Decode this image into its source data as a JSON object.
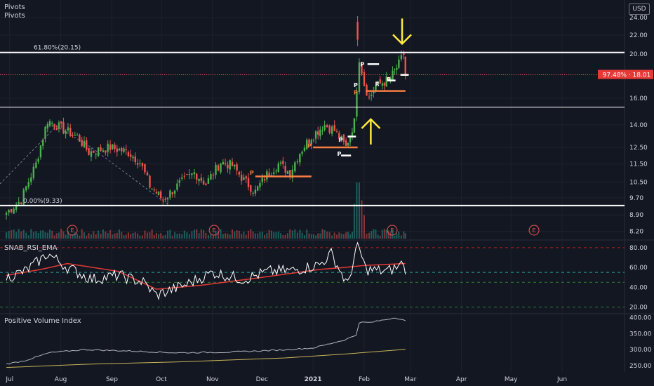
{
  "legend": {
    "line1": "Pivots",
    "line2": "Pivots",
    "currency": "USD"
  },
  "price_panel": {
    "fib_618_label": "61.80%(20.15)",
    "fib_000_label": "0.00%(9.33)",
    "price_badge": "97.48% · 18.01",
    "pivot_marker": "P",
    "pivot_marker_alt": "R",
    "earnings_marker": "E"
  },
  "rsi_panel": {
    "title": "SNAB_RSI_EMA"
  },
  "pvi_panel": {
    "title": "Positive Volume Index"
  },
  "colors": {
    "background": "#131722",
    "up": "#26a69a",
    "up_bright": "#4caf50",
    "down": "#ef5350",
    "fib": "#ffffff",
    "pivot_orange": "#f57c42",
    "arrow": "#ffeb3b",
    "rsi": "#ffffff",
    "rsi_ema": "#e53935",
    "pvi": "#b2b5be",
    "pvi_ema": "#c9b458",
    "badge": "#e53935"
  },
  "chart_data": [
    {
      "type": "candlestick",
      "title": "",
      "x_ticks": [
        "Jul",
        "Aug",
        "Sep",
        "Oct",
        "Nov",
        "Dec",
        "2021",
        "Feb",
        "Mar",
        "Apr",
        "May",
        "Jun"
      ],
      "y_ticks": [
        8.2,
        8.9,
        9.7,
        10.5,
        11.5,
        12.5,
        14.0,
        16.0,
        18.0,
        20.0,
        22.0,
        24.0
      ],
      "y_scale": "log",
      "ylim": [
        7.9,
        25.5
      ],
      "close_anchors": [
        {
          "date": "2020-06-29",
          "value": 9.0
        },
        {
          "date": "2020-07-08",
          "value": 9.6
        },
        {
          "date": "2020-07-17",
          "value": 11.5
        },
        {
          "date": "2020-07-24",
          "value": 14.3
        },
        {
          "date": "2020-08-04",
          "value": 13.6
        },
        {
          "date": "2020-08-11",
          "value": 13.2
        },
        {
          "date": "2020-08-18",
          "value": 12.2
        },
        {
          "date": "2020-08-31",
          "value": 12.5
        },
        {
          "date": "2020-09-11",
          "value": 12.2
        },
        {
          "date": "2020-09-18",
          "value": 11.6
        },
        {
          "date": "2020-09-24",
          "value": 10.3
        },
        {
          "date": "2020-10-02",
          "value": 9.6
        },
        {
          "date": "2020-10-12",
          "value": 10.4
        },
        {
          "date": "2020-10-21",
          "value": 11.0
        },
        {
          "date": "2020-10-28",
          "value": 10.4
        },
        {
          "date": "2020-11-06",
          "value": 11.6
        },
        {
          "date": "2020-11-13",
          "value": 11.4
        },
        {
          "date": "2020-11-20",
          "value": 10.6
        },
        {
          "date": "2020-11-27",
          "value": 10.0
        },
        {
          "date": "2020-12-04",
          "value": 10.9
        },
        {
          "date": "2020-12-11",
          "value": 11.5
        },
        {
          "date": "2020-12-18",
          "value": 11.0
        },
        {
          "date": "2020-12-24",
          "value": 12.2
        },
        {
          "date": "2020-12-31",
          "value": 13.2
        },
        {
          "date": "2021-01-08",
          "value": 14.0
        },
        {
          "date": "2021-01-14",
          "value": 13.6
        },
        {
          "date": "2021-01-21",
          "value": 12.5
        },
        {
          "date": "2021-01-26",
          "value": 14.2
        },
        {
          "date": "2021-01-29",
          "value": 19.6
        },
        {
          "date": "2021-02-01",
          "value": 17.2
        },
        {
          "date": "2021-02-04",
          "value": 16.0
        },
        {
          "date": "2021-02-08",
          "value": 17.0
        },
        {
          "date": "2021-02-12",
          "value": 17.3
        },
        {
          "date": "2021-02-17",
          "value": 17.7
        },
        {
          "date": "2021-02-22",
          "value": 19.0
        },
        {
          "date": "2021-02-25",
          "value": 20.0
        },
        {
          "date": "2021-02-26",
          "value": 18.01
        }
      ],
      "spike_candle": {
        "date": "2021-01-28",
        "open": 23.5,
        "high": 24.2,
        "low": 20.8,
        "close": 21.5
      },
      "fib_levels": [
        {
          "label": "61.80%(20.15)",
          "value": 20.15
        },
        {
          "label": "0.00%(9.33)",
          "value": 9.33
        }
      ],
      "support_line": 15.3,
      "current_price": 18.01,
      "pivot_lines": [
        {
          "type": "orange",
          "value": 10.8,
          "from": "2020-11-27",
          "to": "2020-12-31"
        },
        {
          "type": "orange",
          "value": 12.5,
          "from": "2021-01-01",
          "to": "2021-01-28"
        },
        {
          "type": "orange",
          "value": 16.6,
          "from": "2021-02-02",
          "to": "2021-02-26"
        },
        {
          "type": "white",
          "value": 13.2,
          "from": "2021-01-22",
          "to": "2021-01-27"
        },
        {
          "type": "white",
          "value": 12.0,
          "from": "2021-01-18",
          "to": "2021-01-24"
        },
        {
          "type": "white",
          "value": 19.0,
          "from": "2021-02-03",
          "to": "2021-02-10"
        },
        {
          "type": "white",
          "value": 18.0,
          "from": "2021-02-23",
          "to": "2021-02-28"
        },
        {
          "type": "white",
          "value": 17.5,
          "from": "2021-02-15",
          "to": "2021-02-20"
        }
      ],
      "earnings_dates": [
        "2020-08-08",
        "2020-11-02",
        "2021-02-18",
        "2021-05-15"
      ],
      "arrows": [
        {
          "direction": "down",
          "date": "2021-02-24",
          "value": 21.5
        },
        {
          "direction": "up",
          "date": "2021-02-05",
          "value": 14.1
        }
      ]
    },
    {
      "type": "line",
      "title": "SNAB_RSI_EMA",
      "y_ticks": [
        20.0,
        40.0,
        60.0,
        80.0
      ],
      "ylim": [
        14,
        87
      ],
      "hlines": [
        80,
        55,
        45,
        20
      ],
      "series": [
        {
          "type": "rsi",
          "x": [
            "2020-06-29",
            "2020-07-10",
            "2020-07-20",
            "2020-07-24",
            "2020-08-05",
            "2020-08-20",
            "2020-09-05",
            "2020-09-20",
            "2020-09-28",
            "2020-10-15",
            "2020-11-01",
            "2020-11-20",
            "2020-12-05",
            "2020-12-20",
            "2021-01-05",
            "2021-01-12",
            "2021-01-22",
            "2021-01-28",
            "2021-02-02",
            "2021-02-15",
            "2021-02-22",
            "2021-02-25",
            "2021-02-26"
          ],
          "y": [
            50,
            56,
            68,
            74,
            60,
            48,
            52,
            45,
            32,
            42,
            55,
            48,
            56,
            57,
            63,
            74,
            42,
            84,
            58,
            56,
            61,
            66,
            53
          ]
        },
        {
          "type": "ema",
          "x": [
            "2020-06-29",
            "2020-07-20",
            "2020-08-05",
            "2020-09-05",
            "2020-09-28",
            "2020-10-25",
            "2020-12-01",
            "2021-01-05",
            "2021-01-20",
            "2021-02-01",
            "2021-02-26"
          ],
          "y": [
            52,
            58,
            64,
            56,
            38,
            42,
            50,
            58,
            60,
            62,
            64
          ]
        }
      ]
    },
    {
      "type": "line",
      "title": "Positive Volume Index",
      "y_ticks": [
        250.0,
        300.0,
        350.0,
        400.0
      ],
      "ylim": [
        230,
        410
      ],
      "series": [
        {
          "type": "pvi",
          "x": [
            "2020-06-29",
            "2020-07-10",
            "2020-07-25",
            "2020-08-15",
            "2020-09-15",
            "2020-10-10",
            "2020-11-10",
            "2020-12-10",
            "2021-01-01",
            "2021-01-20",
            "2021-01-27",
            "2021-01-29",
            "2021-02-05",
            "2021-02-20",
            "2021-02-26"
          ],
          "y": [
            255,
            265,
            290,
            300,
            295,
            290,
            292,
            298,
            305,
            330,
            345,
            385,
            385,
            400,
            390
          ]
        },
        {
          "type": "pvi_ema",
          "x": [
            "2020-06-29",
            "2020-08-15",
            "2020-10-15",
            "2020-12-15",
            "2021-01-20",
            "2021-02-26"
          ],
          "y": [
            244,
            254,
            262,
            274,
            286,
            301
          ]
        }
      ]
    }
  ]
}
